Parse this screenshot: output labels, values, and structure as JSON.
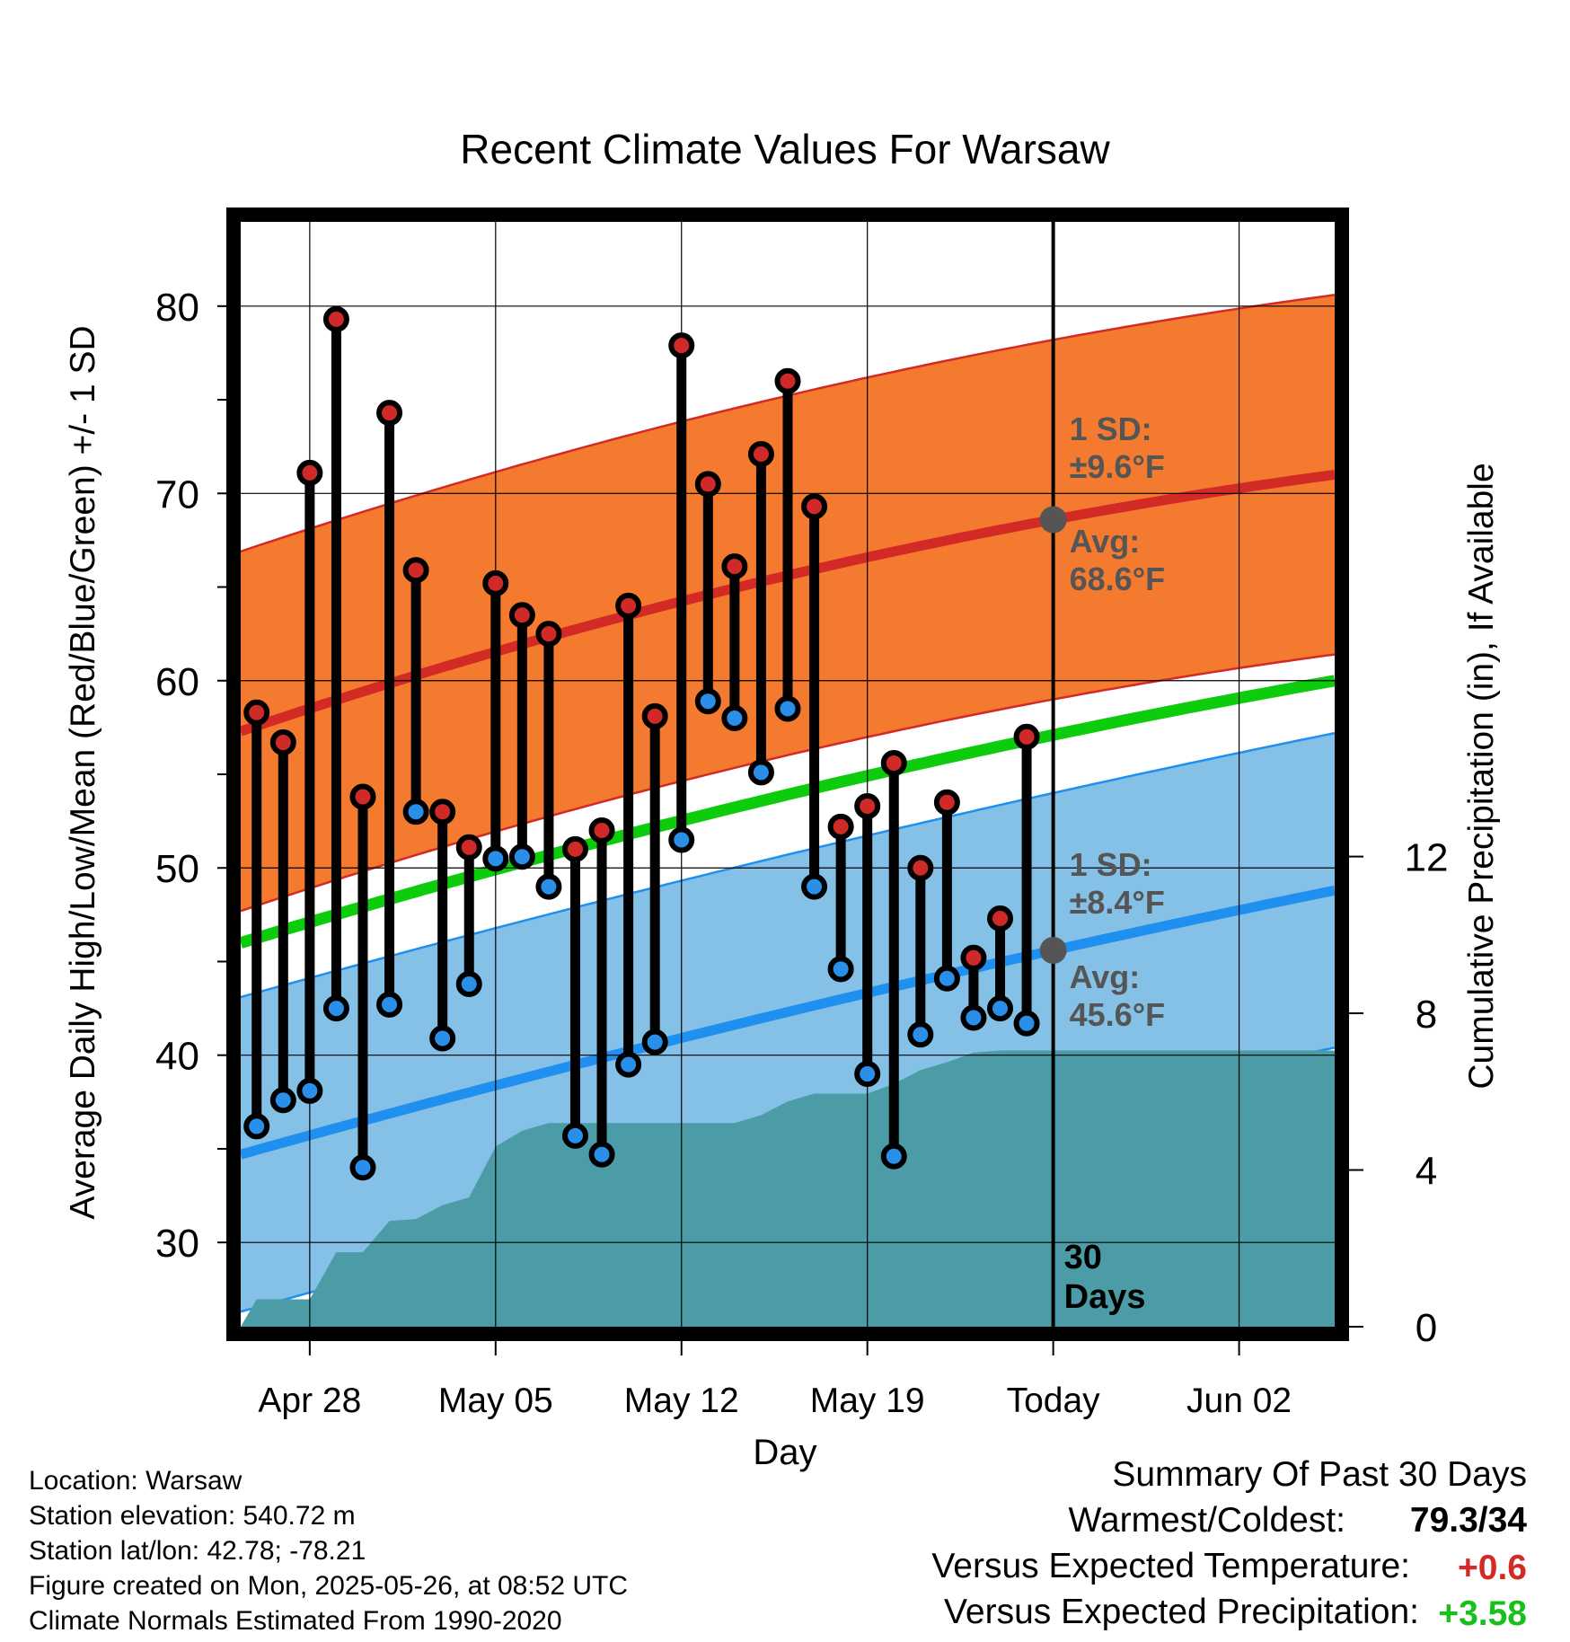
{
  "chart_data": {
    "type": "line",
    "title": "Recent Climate Values For Warsaw",
    "xlabel": "Day",
    "ylabel": "Average Daily High/Low/Mean (Red/Blue/Green) +/- 1 SD",
    "y2label": "Cumulative Precipitation (in), If Available",
    "ylim": [
      25.5,
      84.5
    ],
    "y_ticks": [
      30,
      40,
      50,
      60,
      70,
      80
    ],
    "y2lim": [
      0,
      28.2
    ],
    "y2_ticks": [
      0,
      4,
      8,
      12
    ],
    "xlim": [
      -2.6,
      38.6
    ],
    "x_ticks": [
      {
        "day": 0,
        "label": "Apr 28"
      },
      {
        "day": 7,
        "label": "May 05"
      },
      {
        "day": 14,
        "label": "May 12"
      },
      {
        "day": 21,
        "label": "May 19"
      },
      {
        "day": 28,
        "label": "Today"
      },
      {
        "day": 35,
        "label": "Jun 02"
      }
    ],
    "today_day": 28,
    "today_marker_label": [
      "30",
      "Days"
    ],
    "normal_high": {
      "start": 57.3,
      "today": 68.6,
      "end": 71.0,
      "sd": 9.6
    },
    "normal_low": {
      "start": 34.7,
      "today": 45.6,
      "end": 48.8,
      "sd": 8.4
    },
    "normal_mean": {
      "start": 46.0,
      "today": 57.1,
      "end": 60.0
    },
    "annotations": {
      "high_sd": [
        "1 SD:",
        "±9.6°F"
      ],
      "high_avg": [
        "Avg:",
        "68.6°F"
      ],
      "low_sd": [
        "1 SD:",
        "±8.4°F"
      ],
      "low_avg": [
        "Avg:",
        "45.6°F"
      ]
    },
    "observed": [
      {
        "day": -2,
        "high": 58.3,
        "low": 36.2
      },
      {
        "day": -1,
        "high": 56.7,
        "low": 37.6
      },
      {
        "day": 0,
        "high": 71.1,
        "low": 38.1
      },
      {
        "day": 1,
        "high": 79.3,
        "low": 42.5
      },
      {
        "day": 2,
        "high": 53.8,
        "low": 34.0
      },
      {
        "day": 3,
        "high": 74.3,
        "low": 42.7
      },
      {
        "day": 4,
        "high": 65.9,
        "low": 53.0
      },
      {
        "day": 5,
        "high": 53.0,
        "low": 40.9
      },
      {
        "day": 6,
        "high": 51.1,
        "low": 43.8
      },
      {
        "day": 7,
        "high": 65.2,
        "low": 50.5
      },
      {
        "day": 8,
        "high": 63.5,
        "low": 50.6
      },
      {
        "day": 9,
        "high": 62.5,
        "low": 49.0
      },
      {
        "day": 10,
        "high": 51.0,
        "low": 35.7
      },
      {
        "day": 11,
        "high": 52.0,
        "low": 34.7
      },
      {
        "day": 12,
        "high": 64.0,
        "low": 39.5
      },
      {
        "day": 13,
        "high": 58.1,
        "low": 40.7
      },
      {
        "day": 14,
        "high": 77.9,
        "low": 51.5
      },
      {
        "day": 15,
        "high": 70.5,
        "low": 58.9
      },
      {
        "day": 16,
        "high": 66.1,
        "low": 58.0
      },
      {
        "day": 17,
        "high": 72.1,
        "low": 55.1
      },
      {
        "day": 18,
        "high": 76.0,
        "low": 58.5
      },
      {
        "day": 19,
        "high": 69.3,
        "low": 49.0
      },
      {
        "day": 20,
        "high": 52.2,
        "low": 44.6
      },
      {
        "day": 21,
        "high": 53.3,
        "low": 39.0
      },
      {
        "day": 22,
        "high": 55.6,
        "low": 34.6
      },
      {
        "day": 23,
        "high": 50.0,
        "low": 41.1
      },
      {
        "day": 24,
        "high": 53.5,
        "low": 44.1
      },
      {
        "day": 25,
        "high": 45.2,
        "low": 42.0
      },
      {
        "day": 26,
        "high": 47.3,
        "low": 42.5
      },
      {
        "day": 27,
        "high": 57.0,
        "low": 41.7
      }
    ],
    "cumulative_precip": [
      {
        "day": -2.6,
        "in": 0.0
      },
      {
        "day": -2.0,
        "in": 0.7
      },
      {
        "day": 0.0,
        "in": 0.7
      },
      {
        "day": 1.0,
        "in": 1.9
      },
      {
        "day": 2.0,
        "in": 1.9
      },
      {
        "day": 3.0,
        "in": 2.7
      },
      {
        "day": 4.0,
        "in": 2.75
      },
      {
        "day": 5.0,
        "in": 3.1
      },
      {
        "day": 6.0,
        "in": 3.3
      },
      {
        "day": 7.0,
        "in": 4.6
      },
      {
        "day": 8.0,
        "in": 5.0
      },
      {
        "day": 9.0,
        "in": 5.2
      },
      {
        "day": 16.0,
        "in": 5.2
      },
      {
        "day": 17.0,
        "in": 5.4
      },
      {
        "day": 18.0,
        "in": 5.75
      },
      {
        "day": 19.0,
        "in": 5.95
      },
      {
        "day": 21.0,
        "in": 5.95
      },
      {
        "day": 22.0,
        "in": 6.2
      },
      {
        "day": 23.0,
        "in": 6.55
      },
      {
        "day": 24.0,
        "in": 6.75
      },
      {
        "day": 25.0,
        "in": 7.0
      },
      {
        "day": 26.0,
        "in": 7.05
      },
      {
        "day": 38.6,
        "in": 7.05
      }
    ]
  },
  "info": {
    "location": "Location: Warsaw",
    "elevation": "Station elevation: 540.72 m",
    "latlon": "Station lat/lon: 42.78; -78.21",
    "created": "Figure created on Mon, 2025-05-26, at 08:52 UTC",
    "normals": "Climate Normals Estimated From 1990-2020"
  },
  "summary": {
    "title": "Summary Of Past 30 Days",
    "warmest_label": "Warmest/Coldest:",
    "warmest_value": "79.3/34",
    "temp_label": "Versus Expected Temperature:",
    "temp_value": "+0.6",
    "precip_label": "Versus Expected Precipitation:",
    "precip_value": "+3.58"
  },
  "colors": {
    "high_band": "#f47a2f",
    "high_line": "#d42a25",
    "low_band": "#85c0e6",
    "low_line": "#1f8ff0",
    "mean_line": "#0ccc0c",
    "precip": "#4b9ca6",
    "high_dot": "#cf2a28",
    "low_dot": "#2a8fe8",
    "annotation": "#555555",
    "positive_temp": "#d42a25",
    "positive_precip": "#19c019"
  }
}
